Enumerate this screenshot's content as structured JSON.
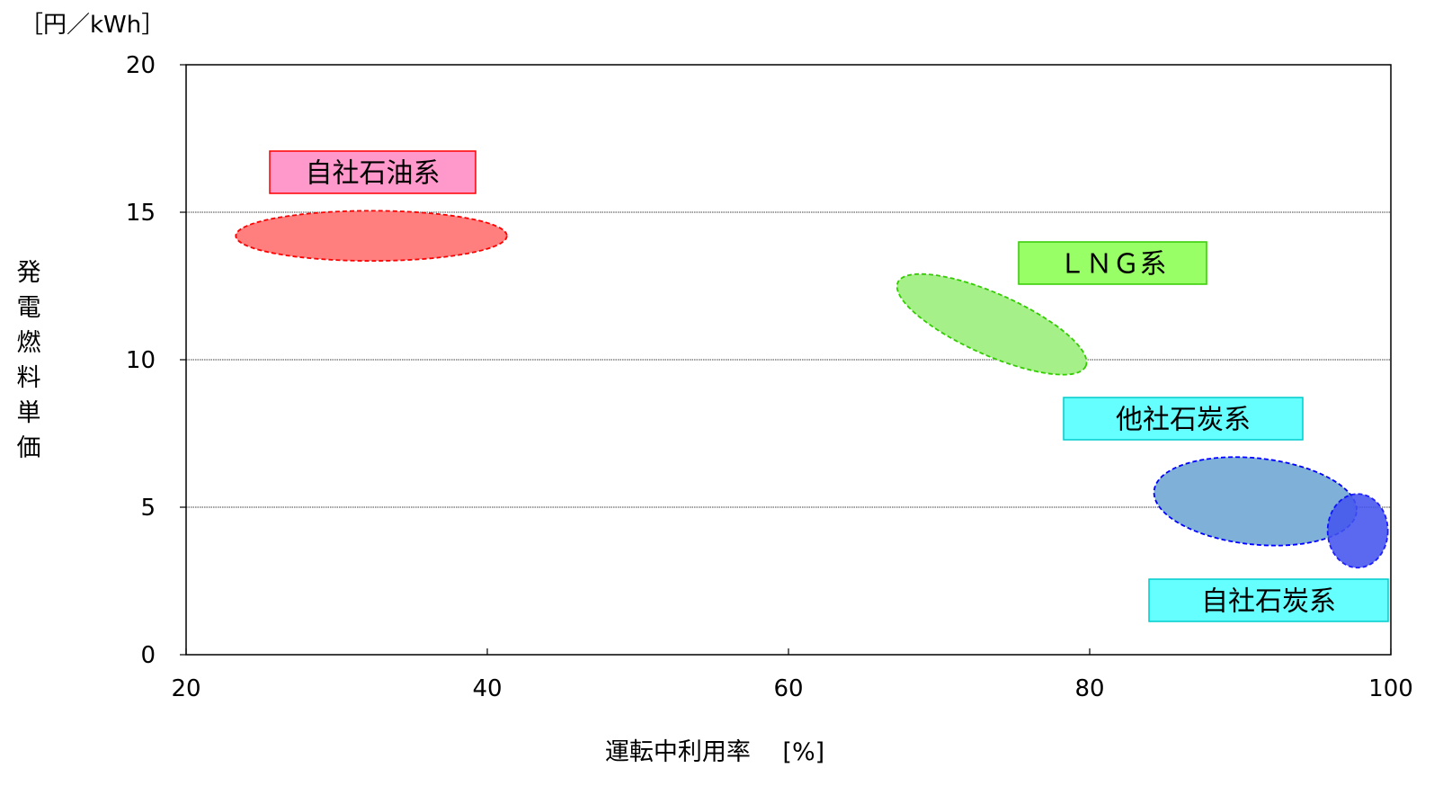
{
  "chart_data": {
    "type": "scatter",
    "title": "",
    "xlabel": "運転中利用率　 [%]",
    "ylabel": "発電燃料単価",
    "yunit": "［円／kWh］",
    "xlim": [
      20,
      100
    ],
    "ylim": [
      0,
      20
    ],
    "xticks": [
      "20",
      "40",
      "60",
      "80",
      "100"
    ],
    "yticks": [
      "0",
      "5",
      "10",
      "15",
      "20"
    ],
    "grid": {
      "horizontal": true,
      "vertical": false
    },
    "series": [
      {
        "name": "自社石油系",
        "fill": "#ff7f7f",
        "stroke": "#ff0000",
        "label_fill": "#ff99cc",
        "label_stroke": "#ff0000",
        "region": {
          "x_center": 32.3,
          "y_center": 14.2,
          "x_min": 23.0,
          "x_max": 41.0,
          "y_min": 13.4,
          "y_max": 15.1
        }
      },
      {
        "name": "ＬＮＧ系",
        "fill": "#a6f08a",
        "stroke": "#33cc00",
        "label_fill": "#99ff66",
        "label_stroke": "#33cc00",
        "region": {
          "x_center": 73.5,
          "y_center": 11.2,
          "x_min": 67.0,
          "x_max": 80.0,
          "y_min": 9.6,
          "y_max": 12.6
        }
      },
      {
        "name": "他社石炭系",
        "fill": "#7fb0d8",
        "stroke": "#0000ff",
        "label_fill": "#66ffff",
        "label_stroke": "#00cccc",
        "region": {
          "x_center": 91.0,
          "y_center": 5.2,
          "x_min": 85.0,
          "x_max": 99.0,
          "y_min": 3.6,
          "y_max": 6.8
        }
      },
      {
        "name": "自社石炭系",
        "fill": "#4455ee",
        "stroke": "#0000ff",
        "label_fill": "#66ffff",
        "label_stroke": "#00cccc",
        "region": {
          "x_center": 97.8,
          "y_center": 4.2,
          "x_min": 96.0,
          "x_max": 100.0,
          "y_min": 2.9,
          "y_max": 5.4
        }
      }
    ]
  }
}
